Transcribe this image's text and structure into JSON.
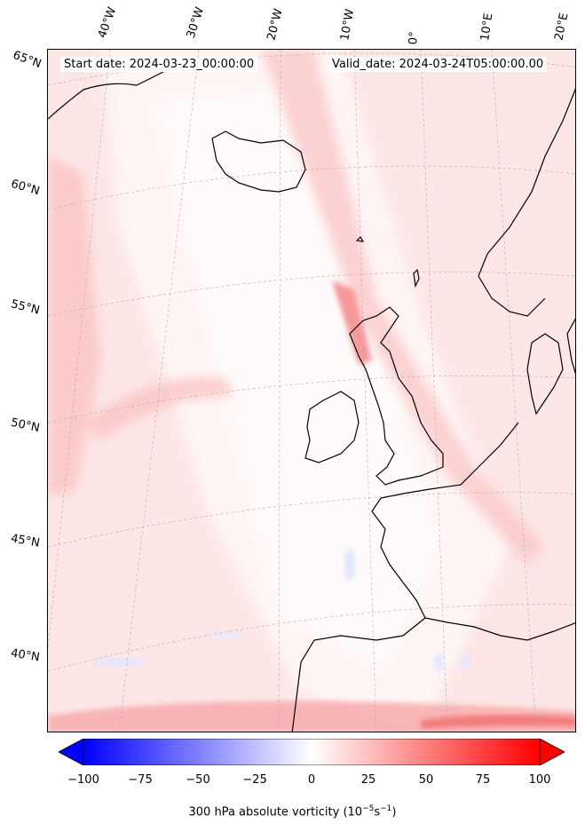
{
  "header": {
    "start_date": "Start date: 2024-03-23_00:00:00",
    "valid_date": "Valid_date: 2024-03-24T05:00:00.00"
  },
  "longitude_labels": [
    "40°W",
    "30°W",
    "20°W",
    "10°W",
    "0°",
    "10°E",
    "20°E"
  ],
  "latitude_labels": [
    "65°N",
    "60°N",
    "55°N",
    "50°N",
    "45°N",
    "40°N"
  ],
  "colorbar": {
    "ticks": [
      "−100",
      "−75",
      "−50",
      "−25",
      "0",
      "25",
      "50",
      "75",
      "100"
    ],
    "label_main": "300 hPa absolute vorticity (10",
    "label_sup1": "−5",
    "label_mid": "s",
    "label_sup2": "−1",
    "label_end": ")",
    "min_color": "#0000ff",
    "mid_color": "#ffffff",
    "max_color": "#ff0000"
  },
  "map": {
    "field": "300 hPa absolute vorticity",
    "colormap": "bwr",
    "coastline_color": "#000000",
    "gridline_style": "dashed gray"
  }
}
